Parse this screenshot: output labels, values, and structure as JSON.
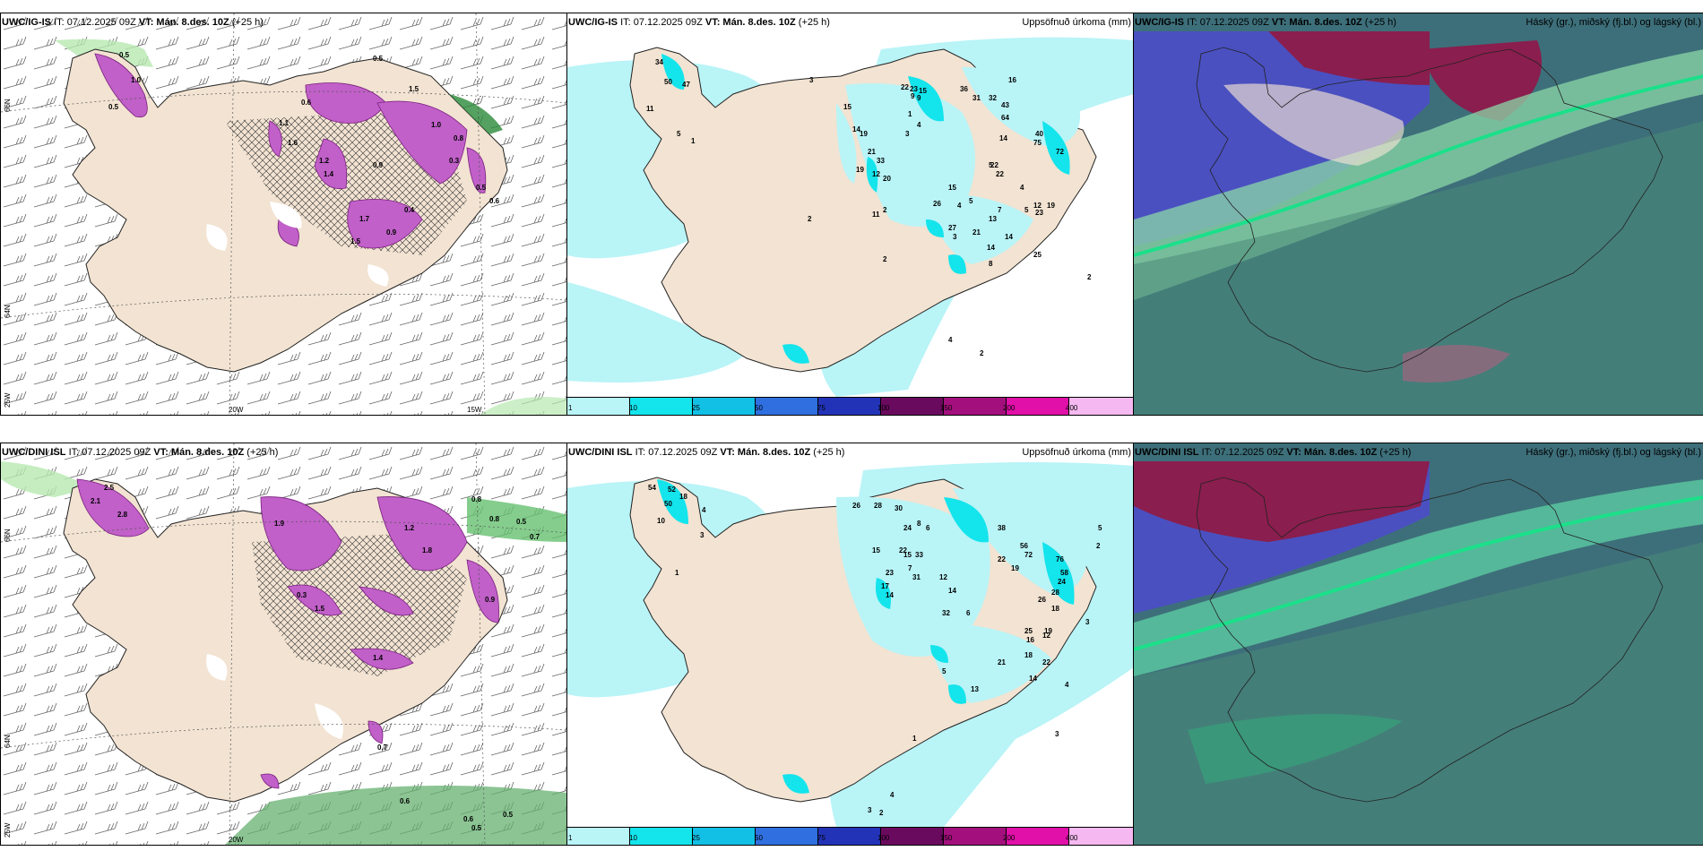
{
  "panels": {
    "p1": {
      "model": "UWC/IG-IS",
      "it": "IT: 07.12.2025 09Z",
      "vt": "VT: Mán. 8.des. 10Z",
      "lead": "(+25 h)",
      "right": ""
    },
    "p2": {
      "model": "UWC/IG-IS",
      "it": "IT: 07.12.2025 09Z",
      "vt": "VT: Mán. 8.des. 10Z",
      "lead": "(+25 h)",
      "right": "Uppsöfnuð úrkoma (mm)"
    },
    "p3": {
      "model": "UWC/IG-IS",
      "it": "IT: 07.12.2025 09Z",
      "vt": "VT: Mán. 8.des. 10Z",
      "lead": "(+25 h)",
      "right": "Háský (gr.), miðský (fj.bl.) og lágský (bl.)"
    },
    "p4": {
      "model": "UWC/DINI ISL",
      "it": "IT: 07.12.2025 09Z",
      "vt": "VT: Mán. 8.des. 10Z",
      "lead": "(+25 h)",
      "right": ""
    },
    "p5": {
      "model": "UWC/DINI ISL",
      "it": "IT: 07.12.2025 09Z",
      "vt": "VT: Mán. 8.des. 10Z",
      "lead": "(+25 h)",
      "right": "Uppsöfnuð úrkoma (mm)"
    },
    "p6": {
      "model": "UWC/DINI ISL",
      "it": "IT: 07.12.2025 09Z",
      "vt": "VT: Mán. 8.des. 10Z",
      "lead": "(+25 h)",
      "right": "Háský (gr.), miðský (fj.bl.) og lágský (bl.)"
    }
  },
  "axes": {
    "lat66": "66N",
    "lat64": "64N",
    "lat65": "65N",
    "lon25": "25W",
    "lon20": "20W",
    "lon15": "15W"
  },
  "colorbar": {
    "ticks": [
      "1",
      "10",
      "25",
      "50",
      "75",
      "100",
      "150",
      "200",
      "400"
    ],
    "colors": [
      "#b9f4f7",
      "#14e4ec",
      "#12bfe5",
      "#2f6fe0",
      "#2233b8",
      "#6a0a5e",
      "#a3107d",
      "#e010a8",
      "#f5b8f0"
    ]
  },
  "colors": {
    "land": "#f2e3d2",
    "sea": "#ffffff",
    "precip_light": "#b9f4f7",
    "precip_mid": "#14e4ec",
    "snow": "#cc66cc",
    "green": "#a6e3a0",
    "cloud_high": "#3d6f7a",
    "cloud_mid": "#4a50c0",
    "cloud_low": "#8a1e4e"
  },
  "p2_values": [
    "34",
    "50",
    "47",
    "11",
    "5",
    "1",
    "22",
    "23",
    "15",
    "15",
    "14",
    "19",
    "21",
    "33",
    "12",
    "19",
    "20",
    "9",
    "36",
    "31",
    "32",
    "43",
    "64",
    "16",
    "14",
    "40",
    "75",
    "22",
    "5",
    "72",
    "15",
    "26",
    "5",
    "4",
    "12",
    "19",
    "23",
    "27",
    "21",
    "13",
    "14",
    "8",
    "25",
    "11",
    "2",
    "3",
    "3",
    "2",
    "2",
    "4",
    "1",
    "3",
    "4",
    "2",
    "3",
    "9",
    "2",
    "22",
    "4",
    "5",
    "7",
    "14"
  ],
  "p5_values": [
    "54",
    "52",
    "18",
    "50",
    "10",
    "4",
    "3",
    "1",
    "26",
    "28",
    "30",
    "24",
    "15",
    "8",
    "6",
    "22",
    "23",
    "15",
    "33",
    "17",
    "14",
    "31",
    "7",
    "12",
    "14",
    "38",
    "56",
    "22",
    "19",
    "72",
    "76",
    "58",
    "24",
    "18",
    "26",
    "28",
    "25",
    "16",
    "19",
    "12",
    "32",
    "5",
    "6",
    "13",
    "21",
    "18",
    "22",
    "14",
    "3",
    "2",
    "5",
    "4",
    "3",
    "1",
    "4",
    "2",
    "3"
  ],
  "p1_values": [
    "0.5",
    "1.0",
    "0.5",
    "1.5",
    "0.6",
    "1.2",
    "1.4",
    "0.9",
    "1.6",
    "1.0",
    "0.3",
    "0.5",
    "1.7",
    "0.9",
    "0.4",
    "1.5",
    "0.6",
    "0.8",
    "0.5",
    "1.1"
  ],
  "p4_values": [
    "2.5",
    "2.8",
    "1.9",
    "0.8",
    "0.8",
    "1.2",
    "0.7",
    "0.5",
    "0.6",
    "1.5",
    "0.5",
    "0.6",
    "0.7",
    "0.5",
    "2.1",
    "1.4",
    "1.8",
    "0.9",
    "0.3"
  ]
}
